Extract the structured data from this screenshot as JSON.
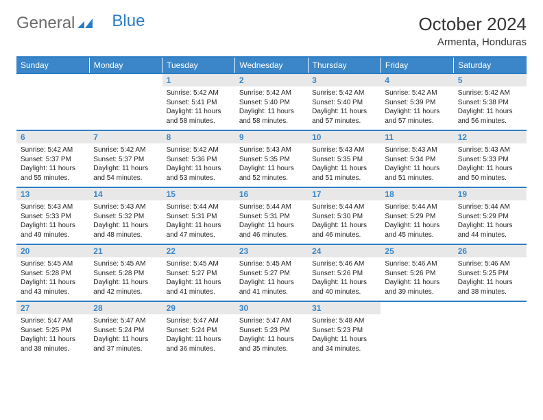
{
  "logo": {
    "general": "General",
    "blue": "Blue"
  },
  "header": {
    "month_title": "October 2024",
    "location": "Armenta, Honduras"
  },
  "colors": {
    "header_bg": "#3a86c8",
    "header_text": "#ffffff",
    "daynum_bg": "#e8e8e8",
    "daynum_text": "#3a86c8",
    "border": "#2a7dc4",
    "body_text": "#222222"
  },
  "typography": {
    "title_fontsize": 26,
    "location_fontsize": 15,
    "dayhead_fontsize": 12,
    "daynum_fontsize": 12,
    "body_fontsize": 10
  },
  "day_names": [
    "Sunday",
    "Monday",
    "Tuesday",
    "Wednesday",
    "Thursday",
    "Friday",
    "Saturday"
  ],
  "weeks": [
    [
      null,
      null,
      {
        "n": "1",
        "sunrise": "5:42 AM",
        "sunset": "5:41 PM",
        "daylight": "11 hours and 58 minutes."
      },
      {
        "n": "2",
        "sunrise": "5:42 AM",
        "sunset": "5:40 PM",
        "daylight": "11 hours and 58 minutes."
      },
      {
        "n": "3",
        "sunrise": "5:42 AM",
        "sunset": "5:40 PM",
        "daylight": "11 hours and 57 minutes."
      },
      {
        "n": "4",
        "sunrise": "5:42 AM",
        "sunset": "5:39 PM",
        "daylight": "11 hours and 57 minutes."
      },
      {
        "n": "5",
        "sunrise": "5:42 AM",
        "sunset": "5:38 PM",
        "daylight": "11 hours and 56 minutes."
      }
    ],
    [
      {
        "n": "6",
        "sunrise": "5:42 AM",
        "sunset": "5:37 PM",
        "daylight": "11 hours and 55 minutes."
      },
      {
        "n": "7",
        "sunrise": "5:42 AM",
        "sunset": "5:37 PM",
        "daylight": "11 hours and 54 minutes."
      },
      {
        "n": "8",
        "sunrise": "5:42 AM",
        "sunset": "5:36 PM",
        "daylight": "11 hours and 53 minutes."
      },
      {
        "n": "9",
        "sunrise": "5:43 AM",
        "sunset": "5:35 PM",
        "daylight": "11 hours and 52 minutes."
      },
      {
        "n": "10",
        "sunrise": "5:43 AM",
        "sunset": "5:35 PM",
        "daylight": "11 hours and 51 minutes."
      },
      {
        "n": "11",
        "sunrise": "5:43 AM",
        "sunset": "5:34 PM",
        "daylight": "11 hours and 51 minutes."
      },
      {
        "n": "12",
        "sunrise": "5:43 AM",
        "sunset": "5:33 PM",
        "daylight": "11 hours and 50 minutes."
      }
    ],
    [
      {
        "n": "13",
        "sunrise": "5:43 AM",
        "sunset": "5:33 PM",
        "daylight": "11 hours and 49 minutes."
      },
      {
        "n": "14",
        "sunrise": "5:43 AM",
        "sunset": "5:32 PM",
        "daylight": "11 hours and 48 minutes."
      },
      {
        "n": "15",
        "sunrise": "5:44 AM",
        "sunset": "5:31 PM",
        "daylight": "11 hours and 47 minutes."
      },
      {
        "n": "16",
        "sunrise": "5:44 AM",
        "sunset": "5:31 PM",
        "daylight": "11 hours and 46 minutes."
      },
      {
        "n": "17",
        "sunrise": "5:44 AM",
        "sunset": "5:30 PM",
        "daylight": "11 hours and 46 minutes."
      },
      {
        "n": "18",
        "sunrise": "5:44 AM",
        "sunset": "5:29 PM",
        "daylight": "11 hours and 45 minutes."
      },
      {
        "n": "19",
        "sunrise": "5:44 AM",
        "sunset": "5:29 PM",
        "daylight": "11 hours and 44 minutes."
      }
    ],
    [
      {
        "n": "20",
        "sunrise": "5:45 AM",
        "sunset": "5:28 PM",
        "daylight": "11 hours and 43 minutes."
      },
      {
        "n": "21",
        "sunrise": "5:45 AM",
        "sunset": "5:28 PM",
        "daylight": "11 hours and 42 minutes."
      },
      {
        "n": "22",
        "sunrise": "5:45 AM",
        "sunset": "5:27 PM",
        "daylight": "11 hours and 41 minutes."
      },
      {
        "n": "23",
        "sunrise": "5:45 AM",
        "sunset": "5:27 PM",
        "daylight": "11 hours and 41 minutes."
      },
      {
        "n": "24",
        "sunrise": "5:46 AM",
        "sunset": "5:26 PM",
        "daylight": "11 hours and 40 minutes."
      },
      {
        "n": "25",
        "sunrise": "5:46 AM",
        "sunset": "5:26 PM",
        "daylight": "11 hours and 39 minutes."
      },
      {
        "n": "26",
        "sunrise": "5:46 AM",
        "sunset": "5:25 PM",
        "daylight": "11 hours and 38 minutes."
      }
    ],
    [
      {
        "n": "27",
        "sunrise": "5:47 AM",
        "sunset": "5:25 PM",
        "daylight": "11 hours and 38 minutes."
      },
      {
        "n": "28",
        "sunrise": "5:47 AM",
        "sunset": "5:24 PM",
        "daylight": "11 hours and 37 minutes."
      },
      {
        "n": "29",
        "sunrise": "5:47 AM",
        "sunset": "5:24 PM",
        "daylight": "11 hours and 36 minutes."
      },
      {
        "n": "30",
        "sunrise": "5:47 AM",
        "sunset": "5:23 PM",
        "daylight": "11 hours and 35 minutes."
      },
      {
        "n": "31",
        "sunrise": "5:48 AM",
        "sunset": "5:23 PM",
        "daylight": "11 hours and 34 minutes."
      },
      null,
      null
    ]
  ],
  "labels": {
    "sunrise": "Sunrise:",
    "sunset": "Sunset:",
    "daylight": "Daylight:"
  }
}
